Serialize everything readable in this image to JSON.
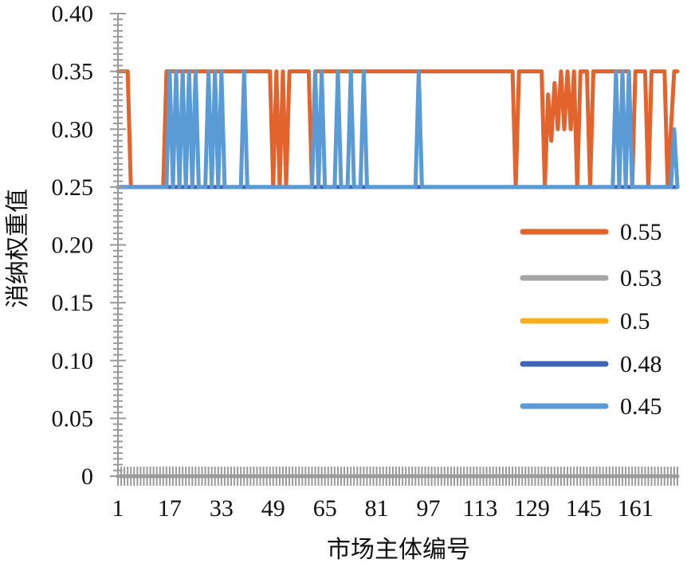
{
  "chart_data": {
    "type": "line",
    "xlabel": "市场主体编号",
    "ylabel": "消纳权重值",
    "xlim": [
      1,
      174
    ],
    "ylim": [
      0,
      0.4
    ],
    "x_ticks": [
      "1",
      "17",
      "33",
      "49",
      "65",
      "81",
      "97",
      "113",
      "129",
      "145",
      "161"
    ],
    "y_ticks": [
      "0",
      "0.05",
      "0.10",
      "0.15",
      "0.20",
      "0.25",
      "0.30",
      "0.35",
      "0.40"
    ],
    "grid": false,
    "legend_position": "right",
    "series": [
      {
        "name": "0.55",
        "color": "#E2632C",
        "points": [
          [
            1,
            0.35
          ],
          [
            4,
            0.35
          ],
          [
            5,
            0.25
          ],
          [
            15,
            0.25
          ],
          [
            16,
            0.35
          ],
          [
            48,
            0.35
          ],
          [
            49,
            0.25
          ],
          [
            50,
            0.35
          ],
          [
            51,
            0.25
          ],
          [
            52,
            0.35
          ],
          [
            53,
            0.25
          ],
          [
            54,
            0.35
          ],
          [
            60,
            0.35
          ],
          [
            61,
            0.25
          ],
          [
            62,
            0.35
          ],
          [
            123,
            0.35
          ],
          [
            124,
            0.25
          ],
          [
            125,
            0.35
          ],
          [
            132,
            0.35
          ],
          [
            133,
            0.25
          ],
          [
            134,
            0.33
          ],
          [
            135,
            0.29
          ],
          [
            136,
            0.34
          ],
          [
            137,
            0.3
          ],
          [
            138,
            0.35
          ],
          [
            139,
            0.3
          ],
          [
            140,
            0.35
          ],
          [
            141,
            0.3
          ],
          [
            142,
            0.35
          ],
          [
            143,
            0.25
          ],
          [
            144,
            0.35
          ],
          [
            146,
            0.35
          ],
          [
            147,
            0.25
          ],
          [
            148,
            0.35
          ],
          [
            159,
            0.35
          ],
          [
            160,
            0.25
          ],
          [
            161,
            0.35
          ],
          [
            164,
            0.35
          ],
          [
            165,
            0.25
          ],
          [
            166,
            0.35
          ],
          [
            170,
            0.35
          ],
          [
            171,
            0.25
          ],
          [
            173,
            0.35
          ],
          [
            174,
            0.35
          ]
        ]
      },
      {
        "name": "0.53",
        "color": "#A5A5A5",
        "points": [
          [
            1,
            0.0
          ],
          [
            174,
            0.0
          ]
        ]
      },
      {
        "name": "0.5",
        "color": "#F2B01E",
        "points": [
          [
            1,
            0.0
          ],
          [
            174,
            0.0
          ]
        ]
      },
      {
        "name": "0.48",
        "color": "#3F64B5",
        "points": [
          [
            1,
            0.25
          ],
          [
            174,
            0.25
          ]
        ]
      },
      {
        "name": "0.45",
        "color": "#5B9BD5",
        "points": [
          [
            1,
            0.25
          ],
          [
            16,
            0.25
          ],
          [
            17,
            0.35
          ],
          [
            18,
            0.25
          ],
          [
            19,
            0.35
          ],
          [
            20,
            0.25
          ],
          [
            21,
            0.35
          ],
          [
            22,
            0.25
          ],
          [
            23,
            0.35
          ],
          [
            24,
            0.25
          ],
          [
            25,
            0.35
          ],
          [
            26,
            0.25
          ],
          [
            28,
            0.25
          ],
          [
            29,
            0.35
          ],
          [
            30,
            0.25
          ],
          [
            31,
            0.35
          ],
          [
            32,
            0.25
          ],
          [
            33,
            0.35
          ],
          [
            34,
            0.25
          ],
          [
            39,
            0.25
          ],
          [
            40,
            0.35
          ],
          [
            41,
            0.25
          ],
          [
            61,
            0.25
          ],
          [
            62,
            0.35
          ],
          [
            63,
            0.25
          ],
          [
            64,
            0.35
          ],
          [
            65,
            0.25
          ],
          [
            68,
            0.25
          ],
          [
            69,
            0.35
          ],
          [
            70,
            0.25
          ],
          [
            72,
            0.25
          ],
          [
            73,
            0.35
          ],
          [
            74,
            0.25
          ],
          [
            76,
            0.25
          ],
          [
            77,
            0.35
          ],
          [
            78,
            0.25
          ],
          [
            93,
            0.25
          ],
          [
            94,
            0.35
          ],
          [
            95,
            0.25
          ],
          [
            154,
            0.25
          ],
          [
            155,
            0.35
          ],
          [
            156,
            0.25
          ],
          [
            157,
            0.35
          ],
          [
            158,
            0.25
          ],
          [
            159,
            0.35
          ],
          [
            160,
            0.25
          ],
          [
            172,
            0.25
          ],
          [
            173,
            0.3
          ],
          [
            174,
            0.25
          ]
        ]
      }
    ]
  }
}
